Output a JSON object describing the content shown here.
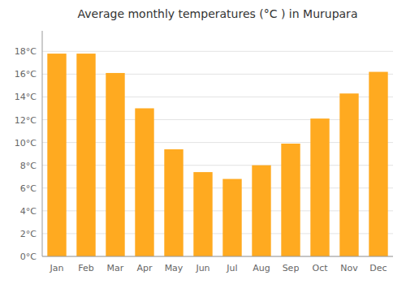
{
  "chart_data": {
    "type": "bar",
    "title": "Average monthly temperatures (°C ) in Murupara",
    "categories": [
      "Jan",
      "Feb",
      "Mar",
      "Apr",
      "May",
      "Jun",
      "Jul",
      "Aug",
      "Sep",
      "Oct",
      "Nov",
      "Dec"
    ],
    "values": [
      17.8,
      17.8,
      16.1,
      13.0,
      9.4,
      7.4,
      6.8,
      8.0,
      9.9,
      12.1,
      14.3,
      16.2
    ],
    "color": "#FFAA20",
    "ylim": [
      0,
      19.8
    ],
    "yticks": [
      {
        "value": 0,
        "label": "0°C"
      },
      {
        "value": 2,
        "label": "2°C"
      },
      {
        "value": 4,
        "label": "4°C"
      },
      {
        "value": 6,
        "label": "6°C"
      },
      {
        "value": 8,
        "label": "8°C"
      },
      {
        "value": 10,
        "label": "10°C"
      },
      {
        "value": 12,
        "label": "12°C"
      },
      {
        "value": 14,
        "label": "14°C"
      },
      {
        "value": 16,
        "label": "16°C"
      },
      {
        "value": 18,
        "label": "18°C"
      }
    ],
    "grid": true
  }
}
